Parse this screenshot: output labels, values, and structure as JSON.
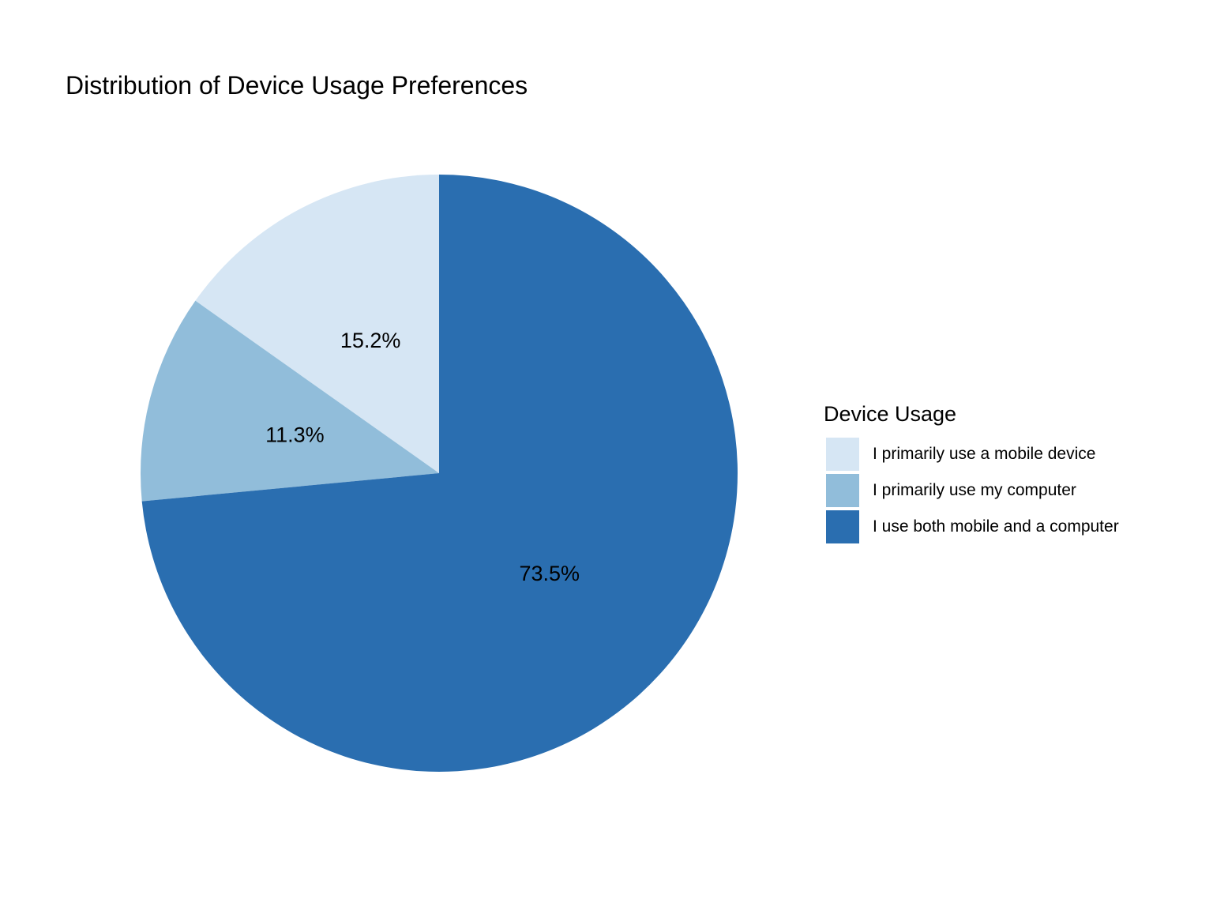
{
  "chart_data": {
    "type": "pie",
    "title": "Distribution of Device Usage Preferences",
    "legend_title": "Device Usage",
    "legend_position": "right",
    "start": "12 o'clock",
    "direction": "counterclockwise",
    "slices": [
      {
        "label": "I primarily use a mobile device",
        "value": 15.2,
        "display": "15.2%",
        "color": "#d6e6f4"
      },
      {
        "label": "I primarily use my computer",
        "value": 11.3,
        "display": "11.3%",
        "color": "#91bdda"
      },
      {
        "label": "I use both mobile and a computer",
        "value": 73.5,
        "display": "73.5%",
        "color": "#2a6eb0"
      }
    ]
  }
}
